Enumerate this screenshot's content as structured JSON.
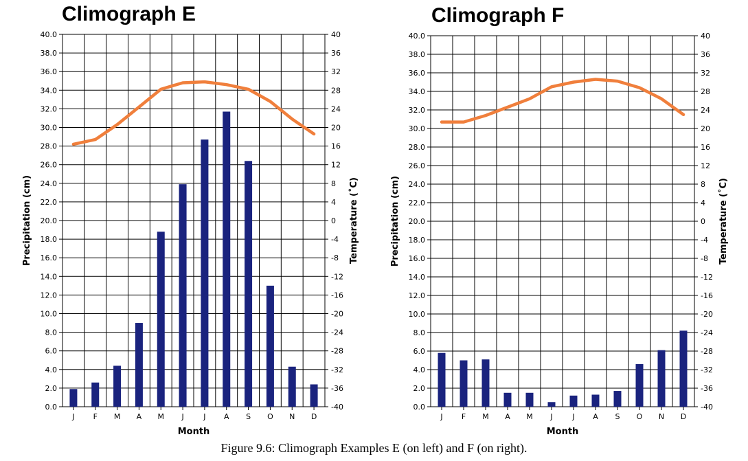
{
  "caption": "Figure 9.6: Climograph Examples E (on left) and F (on right).",
  "chart_data": [
    {
      "type": "bar+line",
      "title": "Climograph E",
      "xlabel": "Month",
      "ylabel_left": "Precipitation (cm)",
      "ylabel_right": "Temperature (˚C)",
      "categories": [
        "J",
        "F",
        "M",
        "A",
        "M",
        "J",
        "J",
        "A",
        "S",
        "O",
        "N",
        "D"
      ],
      "precip_ylim": [
        0,
        40
      ],
      "precip_ticks": [
        "0.0",
        "2.0",
        "4.0",
        "6.0",
        "8.0",
        "10.0",
        "12.0",
        "14.0",
        "16.0",
        "18.0",
        "20.0",
        "22.0",
        "24.0",
        "26.0",
        "28.0",
        "30.0",
        "32.0",
        "34.0",
        "36.0",
        "38.0",
        "40.0"
      ],
      "temp_ylim": [
        -40,
        40
      ],
      "temp_ticks": [
        "-40",
        "-36",
        "-32",
        "-28",
        "-24",
        "-20",
        "-16",
        "-12",
        "-8",
        "-4",
        "0",
        "4",
        "8",
        "12",
        "16",
        "20",
        "24",
        "28",
        "32",
        "36",
        "40"
      ],
      "precipitation": [
        1.9,
        2.6,
        4.4,
        9.0,
        18.8,
        23.9,
        28.7,
        31.7,
        26.4,
        13.0,
        4.3,
        2.4
      ],
      "temperature": [
        16.4,
        17.4,
        20.6,
        24.4,
        28.2,
        29.6,
        29.8,
        29.2,
        28.2,
        25.6,
        21.8,
        18.6
      ],
      "grid": true,
      "bar_color": "#1a237e",
      "line_color": "#f07f3c"
    },
    {
      "type": "bar+line",
      "title": "Climograph F",
      "xlabel": "Month",
      "ylabel_left": "Precipitation (cm)",
      "ylabel_right": "Temperature (˚C)",
      "categories": [
        "J",
        "F",
        "M",
        "A",
        "M",
        "J",
        "J",
        "A",
        "S",
        "O",
        "N",
        "D"
      ],
      "precip_ylim": [
        0,
        40
      ],
      "precip_ticks": [
        "0.0",
        "2.0",
        "4.0",
        "6.0",
        "8.0",
        "10.0",
        "12.0",
        "14.0",
        "16.0",
        "18.0",
        "20.0",
        "22.0",
        "24.0",
        "26.0",
        "28.0",
        "30.0",
        "32.0",
        "34.0",
        "36.0",
        "38.0",
        "40.0"
      ],
      "temp_ylim": [
        -40,
        40
      ],
      "temp_ticks": [
        "-40",
        "-36",
        "-32",
        "-28",
        "-24",
        "-20",
        "-16",
        "-12",
        "-8",
        "-4",
        "0",
        "4",
        "8",
        "12",
        "16",
        "20",
        "24",
        "28",
        "32",
        "36",
        "40"
      ],
      "precipitation": [
        5.8,
        5.0,
        5.1,
        1.5,
        1.5,
        0.5,
        1.2,
        1.3,
        1.7,
        4.6,
        6.1,
        8.2
      ],
      "temperature": [
        21.4,
        21.4,
        22.8,
        24.6,
        26.4,
        29.0,
        30.0,
        30.6,
        30.2,
        28.8,
        26.4,
        23.0
      ],
      "grid": true,
      "bar_color": "#1a237e",
      "line_color": "#f07f3c"
    }
  ]
}
